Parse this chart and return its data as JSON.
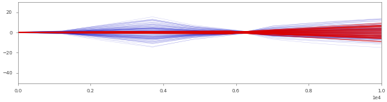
{
  "xlim": [
    0,
    10000
  ],
  "ylim": [
    -50,
    30
  ],
  "figsize": [
    5.57,
    1.48
  ],
  "dpi": 100,
  "blue_color": "#2222cc",
  "red_color": "#dd0000",
  "blue_alpha": 0.25,
  "red_alpha": 0.55,
  "n_blue": 120,
  "n_red": 80,
  "lw_blue": 0.3,
  "lw_red": 0.4,
  "yticks": [
    -40,
    -20,
    0,
    20
  ],
  "xlabel_offset": 0.5
}
